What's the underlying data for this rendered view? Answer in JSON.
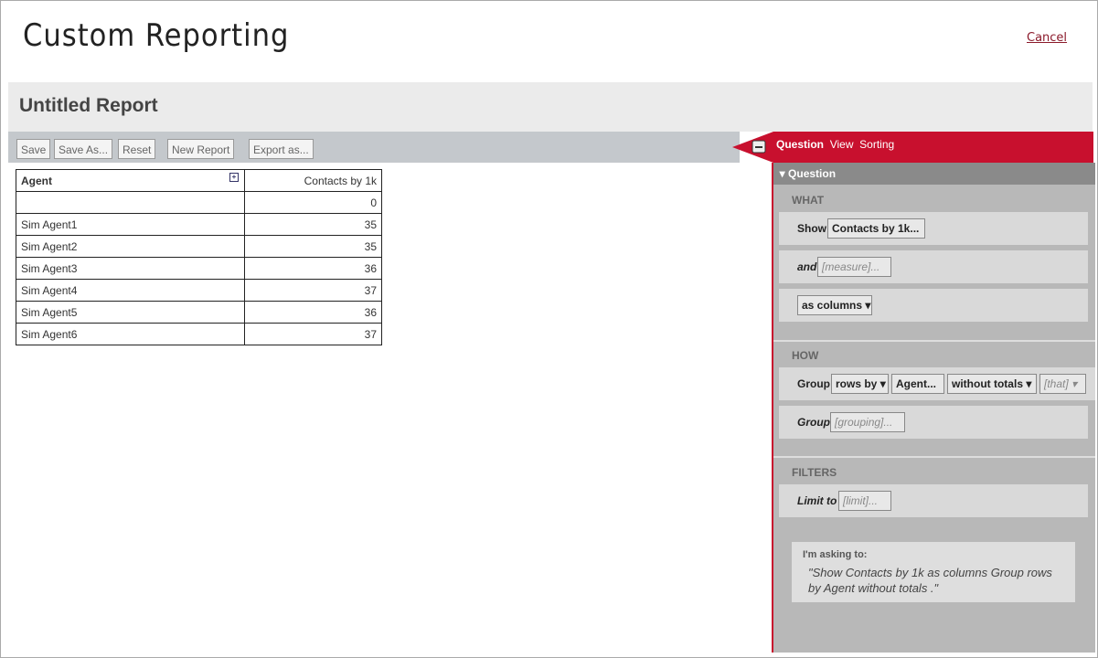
{
  "header": {
    "title": "Custom Reporting",
    "cancel": "Cancel"
  },
  "report": {
    "title": "Untitled Report"
  },
  "toolbar": [
    "Save",
    "Save As...",
    "Reset",
    "New Report",
    "Export as..."
  ],
  "table": {
    "headers": [
      "Agent",
      "Contacts by 1k"
    ],
    "rows": [
      {
        "value": 0
      },
      {
        "agent": "Sim Agent1",
        "value": 35
      },
      {
        "agent": "Sim Agent2",
        "value": 35
      },
      {
        "agent": "Sim Agent3",
        "value": 36
      },
      {
        "agent": "Sim Agent4",
        "value": 37
      },
      {
        "agent": "Sim Agent5",
        "value": 36
      },
      {
        "agent": "Sim Agent6",
        "value": 37
      }
    ]
  },
  "panel": {
    "tabs": [
      "Question",
      "View",
      "Sorting"
    ],
    "section": "Question",
    "what": {
      "label": "WHAT",
      "show": "Show",
      "measure": "Contacts by 1k...",
      "and": "and",
      "measure_placeholder": "[measure]...",
      "as": "as columns"
    },
    "how": {
      "label": "HOW",
      "group": "Group",
      "rows_by": "rows by",
      "agent": "Agent...",
      "totals": "without totals",
      "that": "[that]",
      "group2": "Group",
      "grouping": "[grouping]..."
    },
    "filters": {
      "label": "FILTERS",
      "limit": "Limit to",
      "limit_placeholder": "[limit]..."
    },
    "asking": {
      "label": "I'm asking to:",
      "text": "\"Show Contacts by 1k as columns Group rows by Agent without totals .\""
    }
  }
}
